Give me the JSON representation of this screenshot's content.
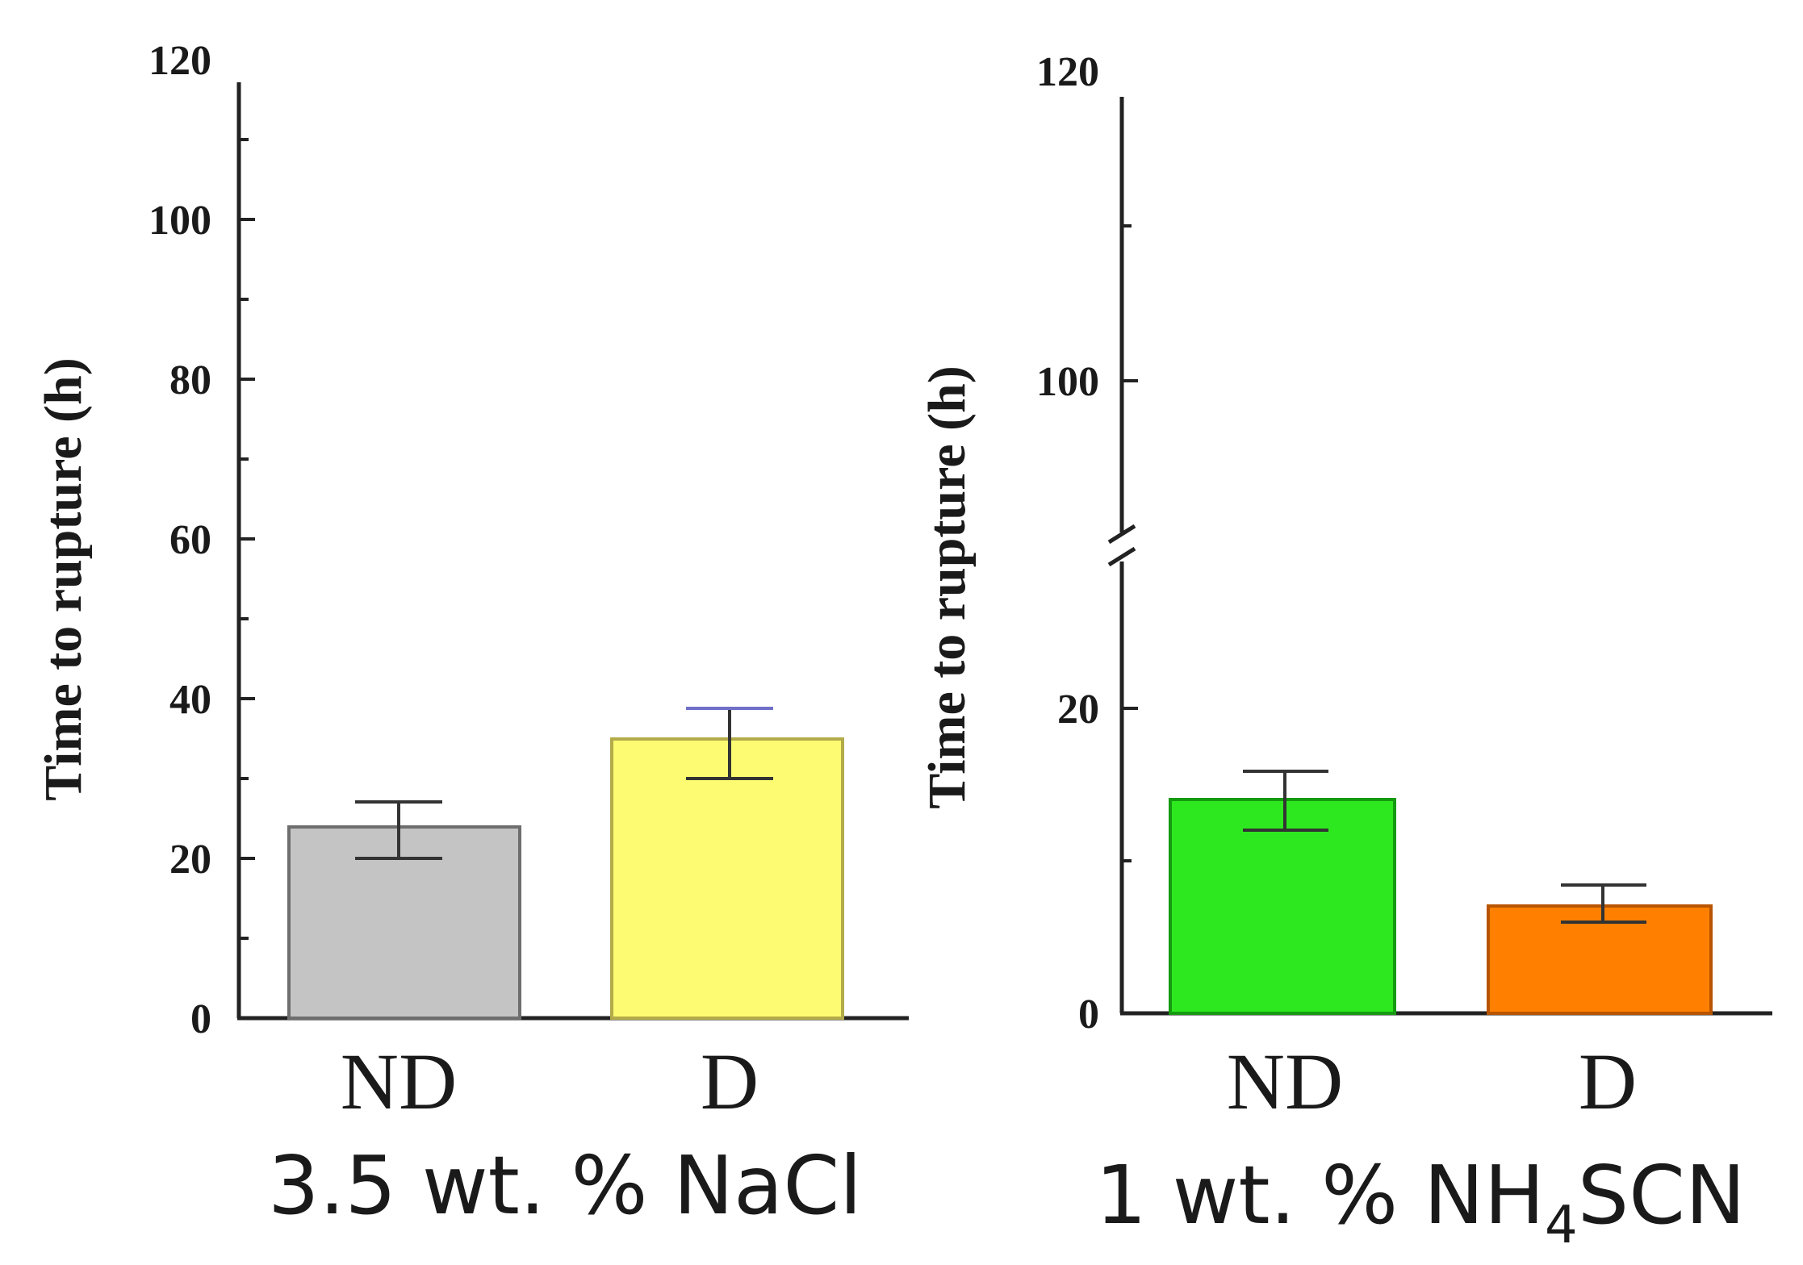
{
  "chart_data": [
    {
      "type": "bar",
      "title": "3.5 wt. % NaCl",
      "ylabel": "Time to rupture (h)",
      "xlabel": "",
      "categories": [
        "ND",
        "D"
      ],
      "values": [
        24,
        35
      ],
      "error_high": [
        27.5,
        39
      ],
      "error_low": [
        20,
        30
      ],
      "colors": [
        "#c4c4c4",
        "#fdfb72"
      ],
      "ylim": [
        0,
        120
      ],
      "yticks": [
        "0",
        "20",
        "40",
        "60",
        "80",
        "100",
        "120"
      ],
      "axis_break": false
    },
    {
      "type": "bar",
      "title": "1 wt. % NH4SCN",
      "title_parts": {
        "main": "1 wt. % NH",
        "subscript": "4",
        "suffix": "SCN"
      },
      "ylabel": "Time to rupture (h)",
      "xlabel": "",
      "categories": [
        "ND",
        "D"
      ],
      "values": [
        14,
        7
      ],
      "error_high": [
        16,
        8.4
      ],
      "error_low": [
        12,
        6
      ],
      "colors": [
        "#2ee81f",
        "#ff8000"
      ],
      "ylim": [
        0,
        120
      ],
      "yticks": [
        "0",
        "20",
        "100",
        "120"
      ],
      "axis_break": true,
      "break_range": [
        30,
        90
      ]
    }
  ]
}
